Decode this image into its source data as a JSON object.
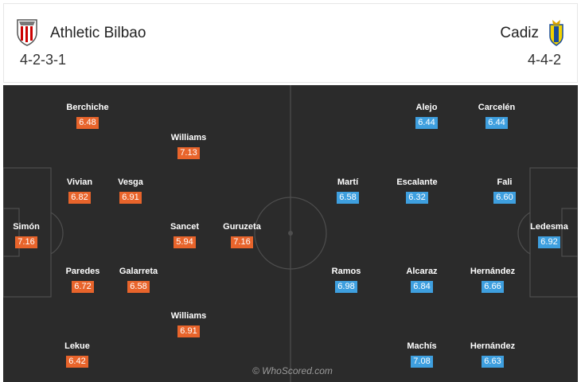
{
  "home": {
    "name": "Athletic Bilbao",
    "formation": "4-2-3-1",
    "players": [
      {
        "name": "Berchiche",
        "rating": "6.48"
      },
      {
        "name": "Williams",
        "rating": "7.13"
      },
      {
        "name": "Vivian",
        "rating": "6.82"
      },
      {
        "name": "Vesga",
        "rating": "6.91"
      },
      {
        "name": "Simón",
        "rating": "7.16"
      },
      {
        "name": "Sancet",
        "rating": "5.94"
      },
      {
        "name": "Guruzeta",
        "rating": "7.16"
      },
      {
        "name": "Paredes",
        "rating": "6.72"
      },
      {
        "name": "Galarreta",
        "rating": "6.58"
      },
      {
        "name": "Williams",
        "rating": "6.91"
      },
      {
        "name": "Lekue",
        "rating": "6.42"
      }
    ]
  },
  "away": {
    "name": "Cadiz",
    "formation": "4-4-2",
    "players": [
      {
        "name": "Alejo",
        "rating": "6.44"
      },
      {
        "name": "Carcelén",
        "rating": "6.44"
      },
      {
        "name": "Martí",
        "rating": "6.58"
      },
      {
        "name": "Escalante",
        "rating": "6.32"
      },
      {
        "name": "Fali",
        "rating": "6.60"
      },
      {
        "name": "Ledesma",
        "rating": "6.92"
      },
      {
        "name": "Ramos",
        "rating": "6.98"
      },
      {
        "name": "Alcaraz",
        "rating": "6.84"
      },
      {
        "name": "Hernández",
        "rating": "6.66"
      },
      {
        "name": "Machís",
        "rating": "7.08"
      },
      {
        "name": "Hernández",
        "rating": "6.63"
      }
    ]
  },
  "watermark": "© WhoScored.com",
  "colors": {
    "home_rating": "#e8642b",
    "away_rating": "#3e9fdf",
    "pitch": "#2b2b2b"
  }
}
